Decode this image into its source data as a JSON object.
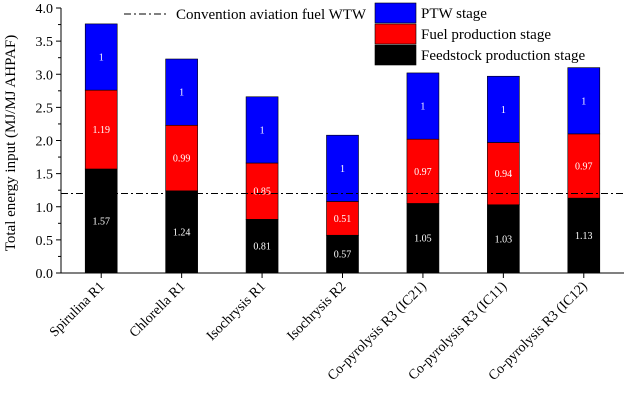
{
  "chart_data": {
    "type": "bar",
    "stacked": true,
    "categories": [
      "Spirulina R1",
      "Chlorella R1",
      "Isochrysis R1",
      "Isochrysis R2",
      "Co-pyrolysis R3 (IC21)",
      "Co-pyrolysis R3 (IC11)",
      "Co-pyrolysis R3 (IC12)"
    ],
    "series": [
      {
        "name": "Feedstock production stage",
        "color": "#000000",
        "label_color": "#ffffff",
        "values": [
          1.57,
          1.24,
          0.81,
          0.57,
          1.05,
          1.03,
          1.13
        ]
      },
      {
        "name": "Fuel production stage",
        "color": "#ff0000",
        "label_color": "#ffffff",
        "values": [
          1.19,
          0.99,
          0.85,
          0.51,
          0.97,
          0.94,
          0.97
        ]
      },
      {
        "name": "PTW stage",
        "color": "#0000ff",
        "label_color": "#ffffff",
        "values": [
          1,
          1,
          1,
          1,
          1,
          1,
          1
        ]
      }
    ],
    "data_labels": [
      [
        "1.57",
        "1.24",
        "0.81",
        "0.57",
        "1.05",
        "1.03",
        "1.13"
      ],
      [
        "1.19",
        "0.99",
        "0.85",
        "0.51",
        "0.97",
        "0.94",
        "0.97"
      ],
      [
        "1",
        "1",
        "1",
        "1",
        "1",
        "1",
        "1"
      ]
    ],
    "reference_line": {
      "label": "Convention aviation fuel WTW",
      "value": 1.2,
      "style": "dash-dot",
      "color": "#000000"
    },
    "ylabel": "Total energy input (MJ/MJ AHPAF)",
    "xlabel": "",
    "ylim": [
      0,
      4.0
    ],
    "yticks": [
      "0.0",
      "0.5",
      "1.0",
      "1.5",
      "2.0",
      "2.5",
      "3.0",
      "3.5",
      "4.0"
    ],
    "legend_order": [
      "PTW stage",
      "Fuel production stage",
      "Feedstock production stage"
    ],
    "legend_position": "top-right",
    "grid": false
  }
}
